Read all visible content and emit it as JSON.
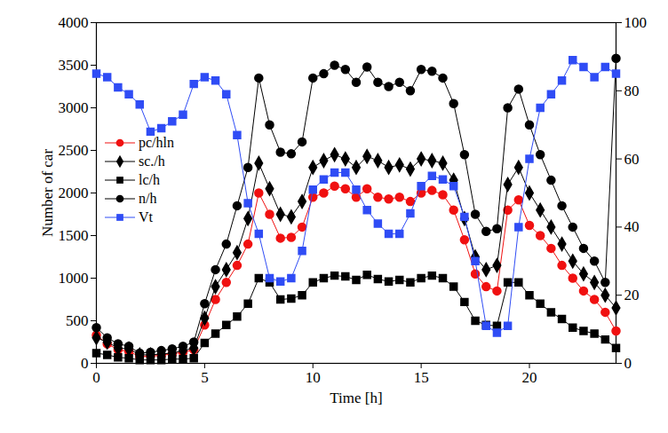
{
  "chart_data": {
    "type": "line",
    "x_label": "Time [h]",
    "y_label": "Number of car",
    "xlim": [
      0,
      24
    ],
    "xticks": [
      0,
      5,
      10,
      15,
      20
    ],
    "ylim": [
      0,
      4000
    ],
    "yticks": [
      0,
      500,
      1000,
      1500,
      2000,
      2500,
      3000,
      3500,
      4000
    ],
    "y2lim": [
      0,
      100
    ],
    "y2ticks": [
      0,
      20,
      40,
      60,
      80,
      100
    ],
    "legend": "left",
    "x": [
      0,
      0.5,
      1,
      1.5,
      2,
      2.5,
      3,
      3.5,
      4,
      4.5,
      5,
      5.5,
      6,
      6.5,
      7,
      7.5,
      8,
      8.5,
      9,
      9.5,
      10,
      10.5,
      11,
      11.5,
      12,
      12.5,
      13,
      13.5,
      14,
      14.5,
      15,
      15.5,
      16,
      16.5,
      17,
      17.5,
      18,
      18.5,
      19,
      19.5,
      20,
      20.5,
      21,
      21.5,
      22,
      22.5,
      23,
      23.5,
      24
    ],
    "series": [
      {
        "name": "pc/hln",
        "color": "#f01010",
        "marker": "circle",
        "values": [
          330,
          230,
          160,
          140,
          80,
          85,
          95,
          110,
          130,
          160,
          450,
          750,
          950,
          1150,
          1400,
          2000,
          1750,
          1470,
          1480,
          1600,
          1950,
          2000,
          2080,
          2050,
          1950,
          2050,
          1950,
          1930,
          1950,
          1900,
          2000,
          2030,
          1980,
          1800,
          1450,
          1050,
          900,
          850,
          1800,
          1920,
          1620,
          1500,
          1350,
          1150,
          1000,
          850,
          750,
          600,
          380
        ]
      },
      {
        "name": "sc./h",
        "color": "#000000",
        "marker": "diamond",
        "values": [
          300,
          250,
          180,
          170,
          100,
          100,
          110,
          120,
          150,
          180,
          530,
          900,
          1100,
          1300,
          1700,
          2350,
          2050,
          1750,
          1720,
          1900,
          2300,
          2380,
          2450,
          2400,
          2300,
          2430,
          2380,
          2300,
          2330,
          2280,
          2400,
          2380,
          2350,
          2150,
          1700,
          1250,
          1100,
          1150,
          2100,
          2300,
          2000,
          1800,
          1600,
          1400,
          1200,
          1050,
          950,
          800,
          650
        ]
      },
      {
        "name": "lc/h",
        "color": "#000000",
        "marker": "square",
        "values": [
          120,
          100,
          70,
          60,
          40,
          40,
          40,
          50,
          50,
          60,
          240,
          350,
          450,
          550,
          700,
          1000,
          950,
          750,
          760,
          800,
          950,
          1000,
          1030,
          1020,
          980,
          1040,
          990,
          960,
          980,
          950,
          1000,
          1030,
          1000,
          900,
          720,
          500,
          450,
          440,
          950,
          950,
          800,
          700,
          600,
          520,
          420,
          380,
          350,
          280,
          180
        ]
      },
      {
        "name": "n/h",
        "color": "#000000",
        "marker": "circle",
        "values": [
          420,
          300,
          230,
          200,
          120,
          130,
          150,
          170,
          200,
          250,
          700,
          1100,
          1400,
          1850,
          2300,
          3350,
          2800,
          2480,
          2460,
          2600,
          3350,
          3400,
          3500,
          3450,
          3300,
          3480,
          3300,
          3250,
          3300,
          3200,
          3450,
          3430,
          3350,
          3050,
          2450,
          1750,
          1550,
          1580,
          3000,
          3220,
          2800,
          2450,
          2150,
          1850,
          1600,
          1350,
          1200,
          950,
          3580
        ]
      },
      {
        "name": "Vt",
        "color": "#2f4cf5",
        "marker": "square",
        "axis": "y2",
        "values": [
          85,
          84,
          81,
          79,
          76,
          68,
          69,
          71,
          73,
          82,
          84,
          83,
          79,
          67,
          47,
          38,
          25,
          24,
          25,
          33,
          51,
          54,
          56,
          56,
          51,
          45,
          41,
          38,
          38,
          44,
          52,
          55,
          54,
          52,
          43,
          30,
          11,
          9,
          11,
          40,
          60,
          75,
          79,
          83,
          89,
          87,
          84,
          87,
          85
        ]
      }
    ]
  }
}
